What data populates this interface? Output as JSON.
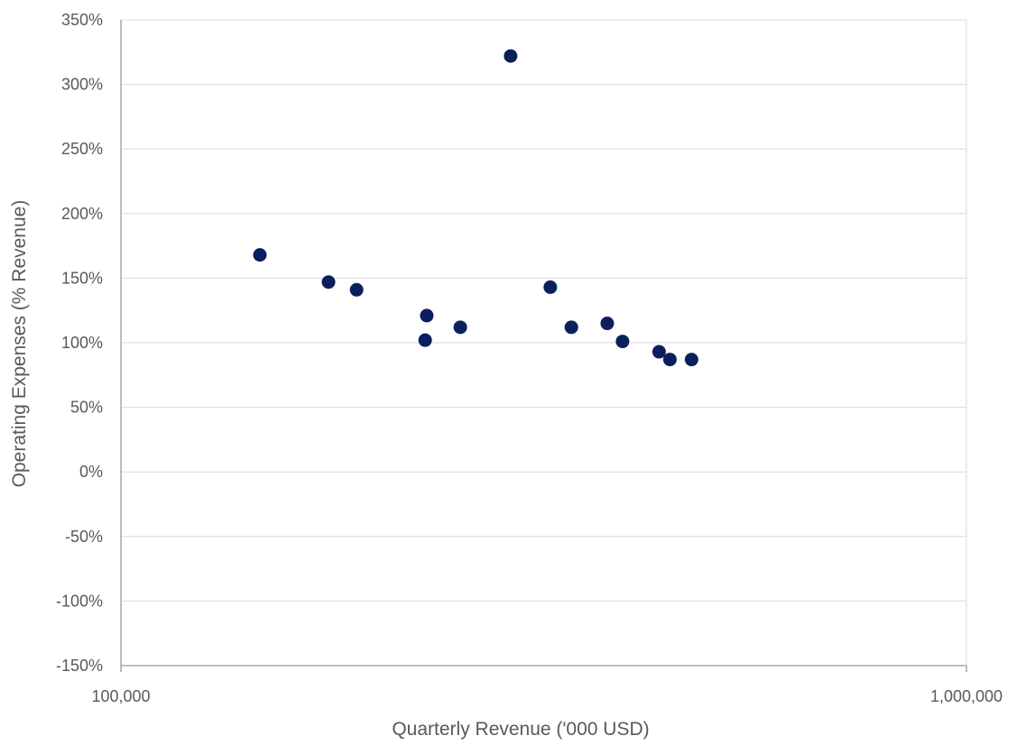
{
  "chart_data": {
    "type": "scatter",
    "title": "",
    "xlabel": "Quarterly Revenue ('000 USD)",
    "ylabel": "Operating Expenses (% Revenue)",
    "x_scale": "log",
    "xlim": [
      100000,
      1000000
    ],
    "ylim": [
      -150,
      350
    ],
    "x_ticks": [
      100000,
      1000000
    ],
    "x_tick_labels": [
      "100,000",
      "1,000,000"
    ],
    "y_ticks": [
      350,
      300,
      250,
      200,
      150,
      100,
      50,
      0,
      -50,
      -100,
      -150
    ],
    "y_tick_labels": [
      "350%",
      "300%",
      "250%",
      "200%",
      "150%",
      "100%",
      "50%",
      "0%",
      "-50%",
      "-100%",
      "-150%"
    ],
    "grid": true,
    "legend": "none",
    "marker_color": "#0b1f5c",
    "series": [
      {
        "points": [
          {
            "x": 146000,
            "y": 168
          },
          {
            "x": 176000,
            "y": 147
          },
          {
            "x": 190000,
            "y": 141
          },
          {
            "x": 230000,
            "y": 121
          },
          {
            "x": 229000,
            "y": 102
          },
          {
            "x": 252000,
            "y": 112
          },
          {
            "x": 289000,
            "y": 322
          },
          {
            "x": 322000,
            "y": 143
          },
          {
            "x": 341000,
            "y": 112
          },
          {
            "x": 376000,
            "y": 115
          },
          {
            "x": 392000,
            "y": 101
          },
          {
            "x": 433000,
            "y": 93
          },
          {
            "x": 446000,
            "y": 87
          },
          {
            "x": 473000,
            "y": 87
          }
        ]
      }
    ]
  }
}
